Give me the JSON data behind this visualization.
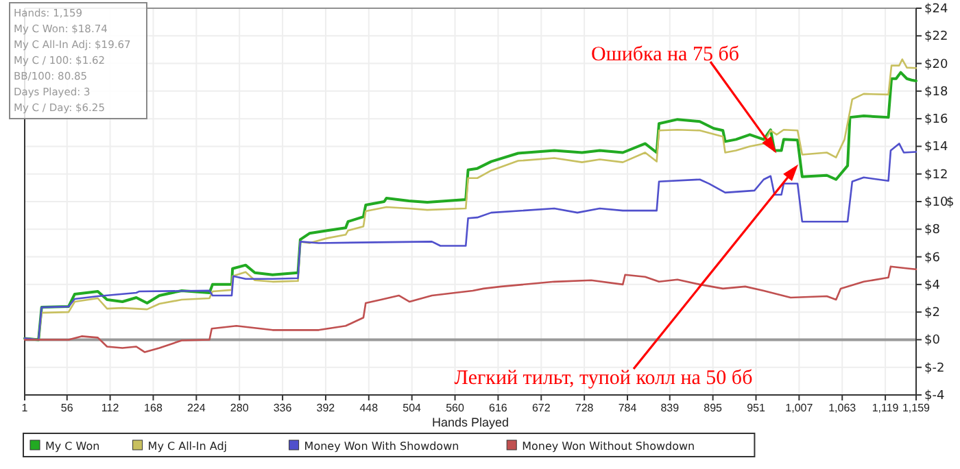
{
  "chart_data": {
    "type": "line",
    "xlabel": "Hands Played",
    "ylabel": "$",
    "xlim": [
      1,
      1159
    ],
    "xticks": [
      1,
      56,
      112,
      168,
      224,
      280,
      336,
      392,
      448,
      504,
      560,
      616,
      672,
      728,
      784,
      839,
      895,
      951,
      {
        "value": 1007,
        "label": "1,007"
      },
      {
        "value": 1063,
        "label": "1,063"
      },
      {
        "value": 1119,
        "label": "1,119"
      },
      {
        "value": 1159,
        "label": "1,159"
      }
    ],
    "ylim": [
      -4,
      24
    ],
    "yticks": [
      {
        "value": -4,
        "label": "$-4"
      },
      {
        "value": -2,
        "label": "$-2"
      },
      {
        "value": 0,
        "label": "$0"
      },
      {
        "value": 2,
        "label": "$2"
      },
      {
        "value": 4,
        "label": "$4"
      },
      {
        "value": 6,
        "label": "$6"
      },
      {
        "value": 8,
        "label": "$8"
      },
      {
        "value": 10,
        "label": "$10"
      },
      {
        "value": 12,
        "label": "$12"
      },
      {
        "value": 14,
        "label": "$14"
      },
      {
        "value": 16,
        "label": "$16"
      },
      {
        "value": 18,
        "label": "$18"
      },
      {
        "value": 20,
        "label": "$20"
      },
      {
        "value": 22,
        "label": "$22"
      },
      {
        "value": 24,
        "label": "$24"
      }
    ],
    "grid": true,
    "legend": "bottom",
    "marker": "none",
    "line_style": "solid",
    "ref_lines": [
      {
        "axis": "y",
        "value": 0,
        "color": "#999999"
      }
    ],
    "annotations": [
      "Hands: 1,159",
      "My C Won: $18.74",
      "My C All-In Adj: $19.67",
      "My C / 100: $1.62",
      "BB/100: 80.85",
      "Days Played: 3",
      "My C / Day: $6.25",
      {
        "text": "Ошибка на 75 бб",
        "x": 975,
        "y": 13.7
      },
      {
        "text": "Легкий тильт, тупой колл на 50 бб",
        "x": 1003,
        "y": 12.5
      }
    ],
    "series": [
      {
        "name": "My C Won",
        "color": "#22aa22",
        "x": [
          1,
          19,
          23,
          58,
          66,
          96,
          108,
          128,
          146,
          160,
          176,
          205,
          241,
          245,
          270,
          271,
          288,
          300,
          323,
          356,
          359,
          371,
          394,
          418,
          421,
          441,
          444,
          468,
          471,
          500,
          524,
          574,
          577,
          589,
          607,
          642,
          689,
          725,
          748,
          778,
          807,
          822,
          825,
          849,
          878,
          896,
          908,
          911,
          925,
          943,
          961,
          970,
          975,
          984,
          987,
          1005,
          1011,
          1043,
          1055,
          1070,
          1073,
          1091,
          1123,
          1127,
          1133,
          1139,
          1147,
          1153,
          1159
        ],
        "values": [
          0.1,
          0,
          2.35,
          2.4,
          3.3,
          3.5,
          2.9,
          2.75,
          3.05,
          2.65,
          3.2,
          3.55,
          3.4,
          4.0,
          4.0,
          5.15,
          5.4,
          4.85,
          4.7,
          4.85,
          7.25,
          7.7,
          7.9,
          8.1,
          8.55,
          8.9,
          9.75,
          10.0,
          10.25,
          10.05,
          9.95,
          10.15,
          12.3,
          12.4,
          12.9,
          13.5,
          13.7,
          13.55,
          13.7,
          13.55,
          14.2,
          13.55,
          15.65,
          15.95,
          15.8,
          15.3,
          15.15,
          14.35,
          14.5,
          14.85,
          14.5,
          15.2,
          13.7,
          13.7,
          14.5,
          14.45,
          11.8,
          11.9,
          11.6,
          12.6,
          16.1,
          16.2,
          16.1,
          18.9,
          18.9,
          19.35,
          18.9,
          18.8,
          18.74
        ]
      },
      {
        "name": "My C All-In Adj",
        "color": "#c8c060",
        "x": [
          1,
          19,
          23,
          58,
          66,
          96,
          108,
          128,
          160,
          176,
          205,
          241,
          245,
          270,
          271,
          288,
          300,
          323,
          356,
          359,
          371,
          394,
          418,
          421,
          441,
          444,
          471,
          500,
          524,
          574,
          577,
          589,
          607,
          642,
          689,
          725,
          748,
          778,
          807,
          822,
          825,
          849,
          878,
          908,
          911,
          925,
          943,
          961,
          970,
          978,
          987,
          1005,
          1011,
          1043,
          1055,
          1066,
          1076,
          1091,
          1123,
          1127,
          1137,
          1141,
          1147,
          1159
        ],
        "values": [
          0.1,
          0,
          1.95,
          2.0,
          2.75,
          3.0,
          2.25,
          2.3,
          2.2,
          2.6,
          2.9,
          3.0,
          3.5,
          3.6,
          4.6,
          4.9,
          4.3,
          4.2,
          4.25,
          7.1,
          7.0,
          7.35,
          7.6,
          7.9,
          8.2,
          9.3,
          9.6,
          9.5,
          9.4,
          9.5,
          11.7,
          11.7,
          12.25,
          12.95,
          13.15,
          12.85,
          13.05,
          12.85,
          13.55,
          12.9,
          15.15,
          15.2,
          15.15,
          14.7,
          13.55,
          13.7,
          14.0,
          14.2,
          15.15,
          14.85,
          15.2,
          15.15,
          13.4,
          13.55,
          13.2,
          14.5,
          17.4,
          17.8,
          17.75,
          19.85,
          19.85,
          20.3,
          19.7,
          19.67
        ]
      },
      {
        "name": "Money Won With Showdown",
        "color": "#5050cc",
        "x": [
          1,
          19,
          23,
          58,
          66,
          96,
          146,
          150,
          241,
          245,
          270,
          272,
          288,
          323,
          356,
          359,
          383,
          530,
          541,
          574,
          577,
          589,
          607,
          689,
          719,
          748,
          778,
          822,
          825,
          878,
          890,
          911,
          949,
          961,
          970,
          975,
          984,
          987,
          1005,
          1011,
          1070,
          1076,
          1091,
          1123,
          1126,
          1137,
          1143,
          1159
        ],
        "values": [
          0.1,
          0,
          2.35,
          2.4,
          2.95,
          3.15,
          3.4,
          3.5,
          3.55,
          3.2,
          3.2,
          4.6,
          4.4,
          4.4,
          4.45,
          7.1,
          7.0,
          7.1,
          6.8,
          6.8,
          8.8,
          8.85,
          9.2,
          9.5,
          9.2,
          9.5,
          9.35,
          9.35,
          11.45,
          11.6,
          11.3,
          10.65,
          10.8,
          11.6,
          11.85,
          10.5,
          10.5,
          11.3,
          11.3,
          8.55,
          8.55,
          11.45,
          11.75,
          11.5,
          13.7,
          14.2,
          13.55,
          13.6
        ]
      },
      {
        "name": "Money Won Without Showdown",
        "color": "#c05050",
        "x": [
          1,
          58,
          75,
          96,
          108,
          128,
          146,
          157,
          176,
          205,
          241,
          244,
          276,
          323,
          383,
          418,
          441,
          444,
          464,
          487,
          501,
          530,
          560,
          583,
          597,
          620,
          689,
          737,
          778,
          781,
          807,
          825,
          849,
          878,
          908,
          937,
          961,
          996,
          1043,
          1055,
          1061,
          1091,
          1123,
          1126,
          1150,
          1159
        ],
        "values": [
          0,
          0,
          0.25,
          0.15,
          -0.5,
          -0.6,
          -0.5,
          -0.9,
          -0.6,
          -0.05,
          0,
          0.8,
          1.0,
          0.7,
          0.7,
          1.0,
          1.6,
          2.65,
          2.9,
          3.2,
          2.75,
          3.2,
          3.4,
          3.55,
          3.7,
          3.85,
          4.2,
          4.3,
          4.0,
          4.7,
          4.55,
          4.2,
          4.35,
          4.0,
          3.7,
          3.85,
          3.55,
          3.05,
          3.15,
          2.9,
          3.7,
          4.2,
          4.5,
          5.3,
          5.15,
          5.1
        ]
      }
    ]
  }
}
